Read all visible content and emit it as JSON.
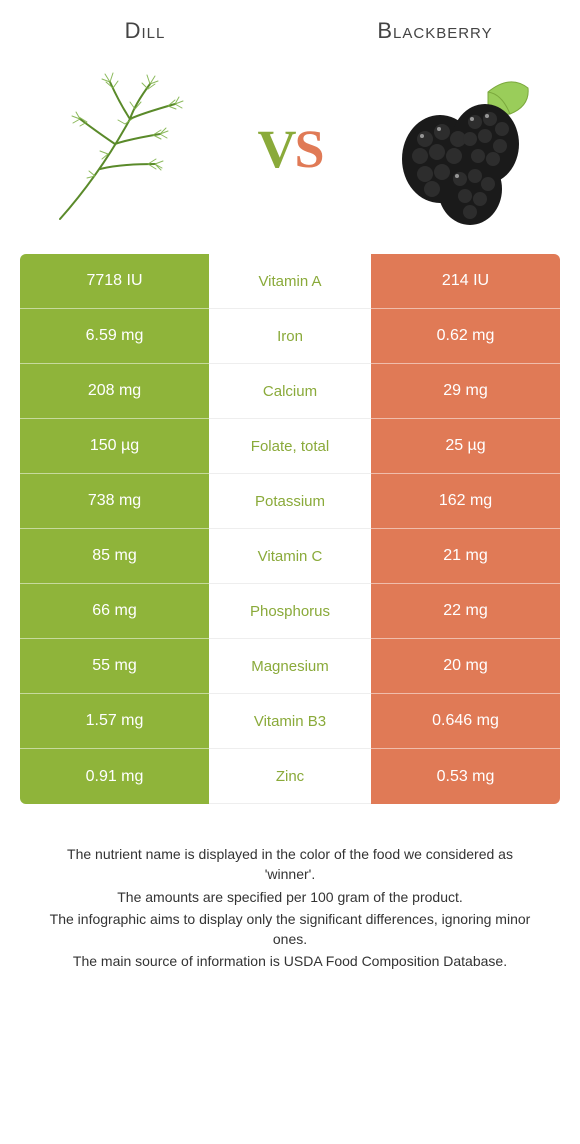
{
  "header": {
    "left": "Dill",
    "right": "Blackberry"
  },
  "vs": {
    "v": "V",
    "s": "S"
  },
  "colors": {
    "left_bg": "#8fb43a",
    "right_bg": "#e07a56",
    "left_text": "#8aaa3a",
    "right_text": "#e07a56",
    "cell_text": "#ffffff",
    "body_bg": "#ffffff"
  },
  "table": {
    "rows": [
      {
        "left": "7718 IU",
        "label": "Vitamin A",
        "right": "214 IU",
        "winner": "left"
      },
      {
        "left": "6.59 mg",
        "label": "Iron",
        "right": "0.62 mg",
        "winner": "left"
      },
      {
        "left": "208 mg",
        "label": "Calcium",
        "right": "29 mg",
        "winner": "left"
      },
      {
        "left": "150 µg",
        "label": "Folate, total",
        "right": "25 µg",
        "winner": "left"
      },
      {
        "left": "738 mg",
        "label": "Potassium",
        "right": "162 mg",
        "winner": "left"
      },
      {
        "left": "85 mg",
        "label": "Vitamin C",
        "right": "21 mg",
        "winner": "left"
      },
      {
        "left": "66 mg",
        "label": "Phosphorus",
        "right": "22 mg",
        "winner": "left"
      },
      {
        "left": "55 mg",
        "label": "Magnesium",
        "right": "20 mg",
        "winner": "left"
      },
      {
        "left": "1.57 mg",
        "label": "Vitamin B3",
        "right": "0.646 mg",
        "winner": "left"
      },
      {
        "left": "0.91 mg",
        "label": "Zinc",
        "right": "0.53 mg",
        "winner": "left"
      }
    ]
  },
  "notes": [
    "The nutrient name is displayed in the color of the food we considered as 'winner'.",
    "The amounts are specified per 100 gram of the product.",
    "The infographic aims to display only the significant differences, ignoring minor ones.",
    "The main source of information is USDA Food Composition Database."
  ]
}
